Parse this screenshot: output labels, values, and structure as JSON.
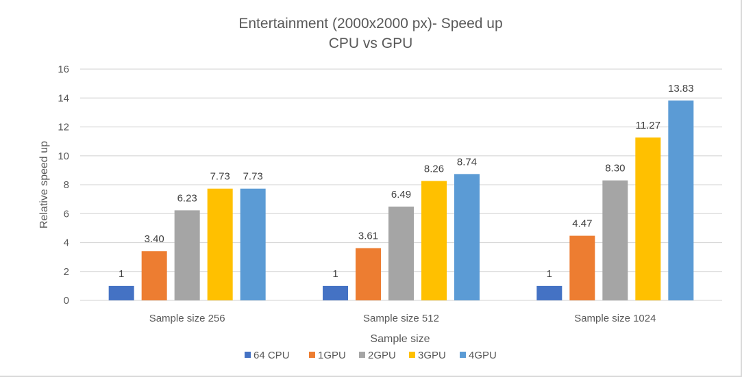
{
  "chart_data": {
    "type": "bar",
    "title": "Entertainment (2000x2000 px)- Speed up",
    "subtitle": "CPU vs GPU",
    "xlabel": "Sample size",
    "ylabel": "Relative speed up",
    "ylim": [
      0,
      16
    ],
    "yticks": [
      0,
      2,
      4,
      6,
      8,
      10,
      12,
      14,
      16
    ],
    "grid": true,
    "legend_position": "bottom",
    "categories": [
      "Sample size 256",
      "Sample size 512",
      "Sample size 1024"
    ],
    "series": [
      {
        "name": "64 CPU",
        "color": "#4472C4",
        "values": [
          1,
          1,
          1
        ],
        "labels": [
          "1",
          "1",
          "1"
        ]
      },
      {
        "name": "1GPU",
        "color": "#ED7D31",
        "values": [
          3.4,
          3.61,
          4.47
        ],
        "labels": [
          "3.40",
          "3.61",
          "4.47"
        ]
      },
      {
        "name": "2GPU",
        "color": "#A5A5A5",
        "values": [
          6.23,
          6.49,
          8.3
        ],
        "labels": [
          "6.23",
          "6.49",
          "8.30"
        ]
      },
      {
        "name": "3GPU",
        "color": "#FFC000",
        "values": [
          7.73,
          8.26,
          11.27
        ],
        "labels": [
          "7.73",
          "8.26",
          "11.27"
        ]
      },
      {
        "name": "4GPU",
        "color": "#5B9BD5",
        "values": [
          7.73,
          8.74,
          13.83
        ],
        "labels": [
          "7.73",
          "8.74",
          "13.83"
        ]
      }
    ]
  }
}
